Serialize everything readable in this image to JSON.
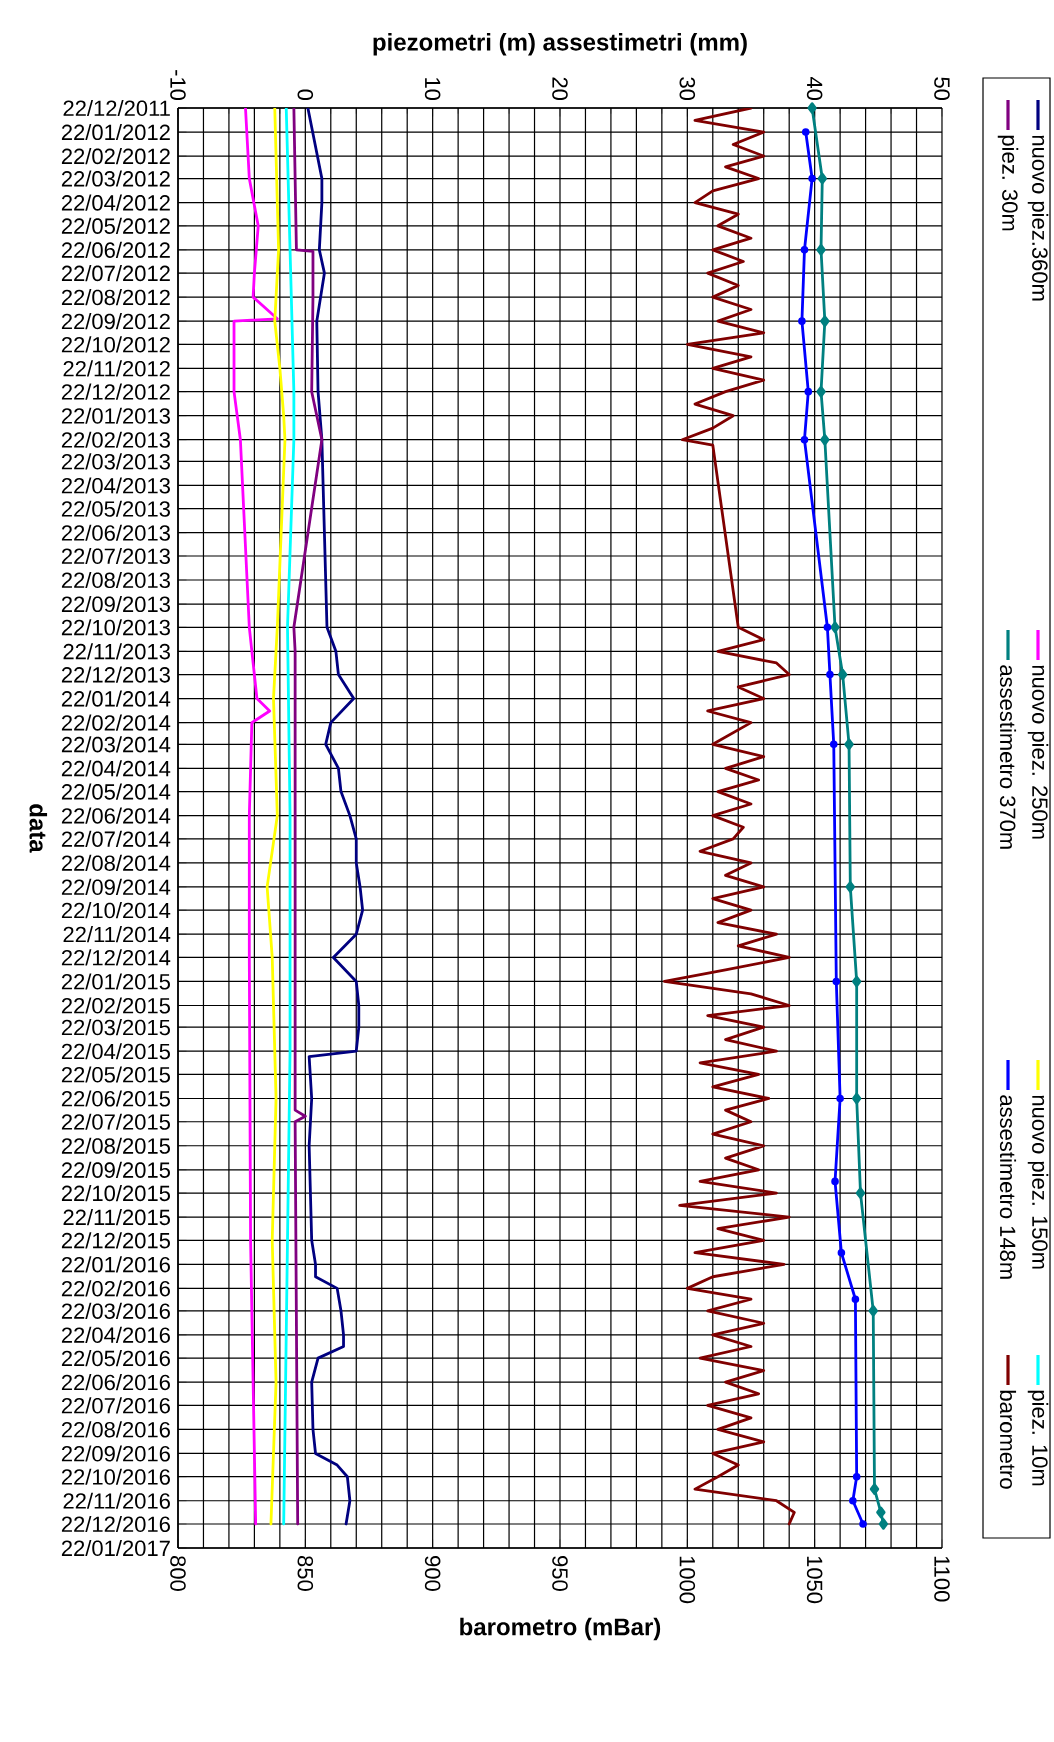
{
  "chart_data": {
    "type": "line",
    "orientation": "horizontal",
    "ylabel": "data",
    "x2label": "piezometri (m) assestimetri (mm)",
    "xlabel": "barometro (mBar)",
    "ylim": [
      "2017-01-22",
      "2011-12-22"
    ],
    "yticks": [
      {
        "value": "2011-12-22",
        "label": "22/12/2011"
      },
      {
        "value": "2012-01-22",
        "label": "22/01/2012"
      },
      {
        "value": "2012-02-22",
        "label": "22/02/2012"
      },
      {
        "value": "2012-03-22",
        "label": "22/03/2012"
      },
      {
        "value": "2012-04-22",
        "label": "22/04/2012"
      },
      {
        "value": "2012-05-22",
        "label": "22/05/2012"
      },
      {
        "value": "2012-06-22",
        "label": "22/06/2012"
      },
      {
        "value": "2012-07-22",
        "label": "22/07/2012"
      },
      {
        "value": "2012-08-22",
        "label": "22/08/2012"
      },
      {
        "value": "2012-09-22",
        "label": "22/09/2012"
      },
      {
        "value": "2012-10-22",
        "label": "22/10/2012"
      },
      {
        "value": "2012-11-22",
        "label": "22/11/2012"
      },
      {
        "value": "2012-12-22",
        "label": "22/12/2012"
      },
      {
        "value": "2013-01-22",
        "label": "22/01/2013"
      },
      {
        "value": "2013-02-22",
        "label": "22/02/2013"
      },
      {
        "value": "2013-03-22",
        "label": "22/03/2013"
      },
      {
        "value": "2013-04-22",
        "label": "22/04/2013"
      },
      {
        "value": "2013-05-22",
        "label": "22/05/2013"
      },
      {
        "value": "2013-06-22",
        "label": "22/06/2013"
      },
      {
        "value": "2013-07-22",
        "label": "22/07/2013"
      },
      {
        "value": "2013-08-22",
        "label": "22/08/2013"
      },
      {
        "value": "2013-09-22",
        "label": "22/09/2013"
      },
      {
        "value": "2013-10-22",
        "label": "22/10/2013"
      },
      {
        "value": "2013-11-22",
        "label": "22/11/2013"
      },
      {
        "value": "2013-12-22",
        "label": "22/12/2013"
      },
      {
        "value": "2014-01-22",
        "label": "22/01/2014"
      },
      {
        "value": "2014-02-22",
        "label": "22/02/2014"
      },
      {
        "value": "2014-03-22",
        "label": "22/03/2014"
      },
      {
        "value": "2014-04-22",
        "label": "22/04/2014"
      },
      {
        "value": "2014-05-22",
        "label": "22/05/2014"
      },
      {
        "value": "2014-06-22",
        "label": "22/06/2014"
      },
      {
        "value": "2014-07-22",
        "label": "22/07/2014"
      },
      {
        "value": "2014-08-22",
        "label": "22/08/2014"
      },
      {
        "value": "2014-09-22",
        "label": "22/09/2014"
      },
      {
        "value": "2014-10-22",
        "label": "22/10/2014"
      },
      {
        "value": "2014-11-22",
        "label": "22/11/2014"
      },
      {
        "value": "2014-12-22",
        "label": "22/12/2014"
      },
      {
        "value": "2015-01-22",
        "label": "22/01/2015"
      },
      {
        "value": "2015-02-22",
        "label": "22/02/2015"
      },
      {
        "value": "2015-03-22",
        "label": "22/03/2015"
      },
      {
        "value": "2015-04-22",
        "label": "22/04/2015"
      },
      {
        "value": "2015-05-22",
        "label": "22/05/2015"
      },
      {
        "value": "2015-06-22",
        "label": "22/06/2015"
      },
      {
        "value": "2015-07-22",
        "label": "22/07/2015"
      },
      {
        "value": "2015-08-22",
        "label": "22/08/2015"
      },
      {
        "value": "2015-09-22",
        "label": "22/09/2015"
      },
      {
        "value": "2015-10-22",
        "label": "22/10/2015"
      },
      {
        "value": "2015-11-22",
        "label": "22/11/2015"
      },
      {
        "value": "2015-12-22",
        "label": "22/12/2015"
      },
      {
        "value": "2016-01-22",
        "label": "22/01/2016"
      },
      {
        "value": "2016-02-22",
        "label": "22/02/2016"
      },
      {
        "value": "2016-03-22",
        "label": "22/03/2016"
      },
      {
        "value": "2016-04-22",
        "label": "22/04/2016"
      },
      {
        "value": "2016-05-22",
        "label": "22/05/2016"
      },
      {
        "value": "2016-06-22",
        "label": "22/06/2016"
      },
      {
        "value": "2016-07-22",
        "label": "22/07/2016"
      },
      {
        "value": "2016-08-22",
        "label": "22/08/2016"
      },
      {
        "value": "2016-09-22",
        "label": "22/09/2016"
      },
      {
        "value": "2016-10-22",
        "label": "22/10/2016"
      },
      {
        "value": "2016-11-22",
        "label": "22/11/2016"
      },
      {
        "value": "2016-12-22",
        "label": "22/12/2016"
      },
      {
        "value": "2017-01-22",
        "label": "22/01/2017"
      }
    ],
    "x2lim": [
      -10,
      50
    ],
    "x2ticks": [
      -10,
      0,
      10,
      20,
      30,
      40,
      50
    ],
    "xlim": [
      800,
      1100
    ],
    "xticks": [
      800,
      850,
      900,
      950,
      1000,
      1050,
      1100
    ],
    "grid": true,
    "legend": "right",
    "series": [
      {
        "name": "nuovo piez.360m",
        "color": "#000080",
        "axis": "x2",
        "x": [
          "2011-12-22",
          "2012-03-22",
          "2012-04-22",
          "2012-06-22",
          "2012-07-22",
          "2012-09-22",
          "2012-12-22",
          "2013-02-22",
          "2013-10-22",
          "2013-11-22",
          "2013-12-22",
          "2014-01-22",
          "2014-02-22",
          "2014-03-22",
          "2014-04-22",
          "2014-05-22",
          "2014-06-22",
          "2014-07-22",
          "2014-08-22",
          "2014-09-22",
          "2014-10-22",
          "2014-11-22",
          "2014-12-22",
          "2015-01-22",
          "2015-02-22",
          "2015-03-22",
          "2015-04-22",
          "2015-04-29",
          "2015-06-22",
          "2015-08-22",
          "2015-12-22",
          "2016-01-22",
          "2016-02-07",
          "2016-02-22",
          "2016-03-22",
          "2016-04-22",
          "2016-05-07",
          "2016-05-22",
          "2016-06-22",
          "2016-08-22",
          "2016-09-22",
          "2016-10-07",
          "2016-10-22",
          "2016-11-22",
          "2016-12-22"
        ],
        "values": [
          0.2,
          1.3,
          1.3,
          1.1,
          1.5,
          0.9,
          1.0,
          1.3,
          1.7,
          2.4,
          2.6,
          3.8,
          2.0,
          1.6,
          2.6,
          2.8,
          3.5,
          4.0,
          4.0,
          4.3,
          4.5,
          4.0,
          2.2,
          4.0,
          4.2,
          4.2,
          4.0,
          0.3,
          0.5,
          0.3,
          0.5,
          0.8,
          0.8,
          2.5,
          2.8,
          3.0,
          3.0,
          1.0,
          0.5,
          0.6,
          0.8,
          2.5,
          3.3,
          3.5,
          3.2
        ]
      },
      {
        "name": "piez. 30m",
        "color": "#800080",
        "axis": "x2",
        "x": [
          "2011-12-22",
          "2012-06-22",
          "2012-06-24",
          "2012-08-22",
          "2012-12-22",
          "2013-02-22",
          "2013-10-22",
          "2013-11-22",
          "2015-07-07",
          "2015-07-15",
          "2015-07-22",
          "2016-12-22"
        ],
        "values": [
          -0.9,
          -0.7,
          0.6,
          0.6,
          0.5,
          1.3,
          -0.9,
          -0.8,
          -0.8,
          0.0,
          -0.8,
          -0.6
        ]
      },
      {
        "name": "nuovo piez. 250m",
        "color": "#ff00ff",
        "axis": "x2",
        "x": [
          "2011-12-22",
          "2012-03-22",
          "2012-05-22",
          "2012-07-22",
          "2012-08-22",
          "2012-09-19",
          "2012-09-22",
          "2012-12-22",
          "2013-02-22",
          "2013-10-22",
          "2014-01-22",
          "2014-02-07",
          "2014-02-22",
          "2014-06-22",
          "2014-12-22",
          "2015-12-22",
          "2016-12-22"
        ],
        "values": [
          -4.7,
          -4.4,
          -3.7,
          -4.0,
          -4.1,
          -2.2,
          -5.6,
          -5.6,
          -5.1,
          -4.4,
          -3.8,
          -2.8,
          -4.2,
          -4.4,
          -4.4,
          -4.3,
          -3.9
        ]
      },
      {
        "name": "assestimetro 370m",
        "color": "#008080",
        "axis": "x2",
        "marker": "diamond",
        "x": [
          "2011-12-22",
          "2012-03-22",
          "2012-06-22",
          "2012-09-22",
          "2012-12-22",
          "2013-02-22",
          "2013-10-22",
          "2013-12-22",
          "2014-03-22",
          "2014-09-22",
          "2015-01-22",
          "2015-06-22",
          "2015-10-22",
          "2016-03-22",
          "2016-11-07",
          "2016-12-07",
          "2016-12-22"
        ],
        "values": [
          39.8,
          40.6,
          40.5,
          40.8,
          40.5,
          40.8,
          41.6,
          42.2,
          42.7,
          42.8,
          43.3,
          43.3,
          43.6,
          44.6,
          44.7,
          45.2,
          45.4
        ]
      },
      {
        "name": "nuovo piez. 150m",
        "color": "#ffff00",
        "axis": "x2",
        "x": [
          "2011-12-22",
          "2012-06-22",
          "2012-09-22",
          "2012-11-22",
          "2013-01-22",
          "2013-02-22",
          "2013-10-22",
          "2014-01-22",
          "2014-06-22",
          "2014-09-22",
          "2014-12-22",
          "2015-06-22",
          "2015-12-22",
          "2016-06-22",
          "2016-12-22"
        ],
        "values": [
          -2.4,
          -2.1,
          -2.4,
          -2.0,
          -1.7,
          -1.6,
          -2.2,
          -2.5,
          -2.2,
          -3.0,
          -2.6,
          -2.3,
          -2.6,
          -2.3,
          -2.7
        ]
      },
      {
        "name": "assestimetro 148m",
        "color": "#0000ff",
        "axis": "x2",
        "marker": "circle",
        "x": [
          "2012-01-22",
          "2012-03-22",
          "2012-06-22",
          "2012-09-22",
          "2012-12-22",
          "2013-02-22",
          "2013-10-22",
          "2013-12-22",
          "2014-03-22",
          "2015-01-22",
          "2015-06-22",
          "2015-10-07",
          "2016-01-07",
          "2016-03-07",
          "2016-10-22",
          "2016-11-22",
          "2016-12-22"
        ],
        "values": [
          39.3,
          39.8,
          39.2,
          39.0,
          39.5,
          39.2,
          41.0,
          41.2,
          41.5,
          41.7,
          42.0,
          41.6,
          42.1,
          43.2,
          43.3,
          43.0,
          43.8
        ]
      },
      {
        "name": "piez. 10m",
        "color": "#00ffff",
        "axis": "x2",
        "x": [
          "2011-12-22",
          "2012-06-22",
          "2012-12-22",
          "2013-02-22",
          "2013-10-22",
          "2014-06-22",
          "2015-04-22",
          "2015-12-22",
          "2016-12-22"
        ],
        "values": [
          -1.5,
          -1.2,
          -0.9,
          -0.9,
          -1.4,
          -1.2,
          -1.2,
          -1.4,
          -1.7
        ]
      },
      {
        "name": "barometro",
        "color": "#800000",
        "x": [
          "2011-12-22",
          "2012-01-07",
          "2012-01-22",
          "2012-02-07",
          "2012-02-22",
          "2012-03-07",
          "2012-03-22",
          "2012-04-07",
          "2012-04-22",
          "2012-05-07",
          "2012-05-22",
          "2012-06-07",
          "2012-06-22",
          "2012-07-07",
          "2012-07-22",
          "2012-08-07",
          "2012-08-22",
          "2012-09-07",
          "2012-09-22",
          "2012-10-07",
          "2012-10-22",
          "2012-11-07",
          "2012-11-22",
          "2012-12-07",
          "2012-12-22",
          "2013-01-07",
          "2013-01-22",
          "2013-02-07",
          "2013-02-22",
          "2013-03-01",
          "2013-10-22",
          "2013-11-07",
          "2013-11-22",
          "2013-12-07",
          "2013-12-22",
          "2014-01-07",
          "2014-01-22",
          "2014-02-07",
          "2014-02-22",
          "2014-03-22",
          "2014-04-07",
          "2014-04-22",
          "2014-05-07",
          "2014-05-22",
          "2014-06-07",
          "2014-06-22",
          "2014-07-07",
          "2014-07-22",
          "2014-08-07",
          "2014-08-22",
          "2014-09-07",
          "2014-09-22",
          "2014-10-07",
          "2014-10-22",
          "2014-11-07",
          "2014-11-22",
          "2014-12-07",
          "2014-12-22",
          "2015-01-07",
          "2015-01-22",
          "2015-02-07",
          "2015-02-22",
          "2015-03-07",
          "2015-03-22",
          "2015-04-07",
          "2015-04-22",
          "2015-05-07",
          "2015-05-22",
          "2015-06-07",
          "2015-06-22",
          "2015-07-07",
          "2015-07-22",
          "2015-08-07",
          "2015-08-22",
          "2015-09-07",
          "2015-09-22",
          "2015-10-07",
          "2015-10-22",
          "2015-11-07",
          "2015-11-22",
          "2015-12-07",
          "2015-12-22",
          "2016-01-07",
          "2016-01-22",
          "2016-02-07",
          "2016-02-22",
          "2016-03-07",
          "2016-03-22",
          "2016-04-07",
          "2016-04-22",
          "2016-05-07",
          "2016-05-22",
          "2016-06-07",
          "2016-06-22",
          "2016-07-07",
          "2016-07-22",
          "2016-08-07",
          "2016-08-22",
          "2016-09-07",
          "2016-09-22",
          "2016-10-07",
          "2016-10-22",
          "2016-11-07",
          "2016-11-22",
          "2016-12-07",
          "2016-12-22"
        ],
        "values": [
          1025,
          1003,
          1030,
          1018,
          1030,
          1015,
          1028,
          1010,
          1003,
          1020,
          1012,
          1025,
          1010,
          1022,
          1008,
          1020,
          1010,
          1025,
          1012,
          1030,
          1000,
          1025,
          1010,
          1030,
          1015,
          1003,
          1018,
          1010,
          998,
          1010,
          1020,
          1030,
          1012,
          1035,
          1040,
          1020,
          1030,
          1008,
          1025,
          1010,
          1030,
          1015,
          1028,
          1012,
          1025,
          1010,
          1022,
          1018,
          1005,
          1025,
          1015,
          1030,
          1010,
          1025,
          1012,
          1035,
          1020,
          1040,
          1015,
          991,
          1025,
          1040,
          1008,
          1030,
          1015,
          1035,
          1005,
          1028,
          1010,
          1032,
          1015,
          1025,
          1010,
          1030,
          1015,
          1028,
          1005,
          1035,
          997,
          1040,
          1012,
          1030,
          1003,
          1038,
          1010,
          1000,
          1025,
          1008,
          1030,
          1010,
          1025,
          1005,
          1030,
          1015,
          1028,
          1008,
          1025,
          1012,
          1030,
          1010,
          1020,
          1012,
          1003,
          1035,
          1042,
          1040
        ]
      }
    ]
  }
}
